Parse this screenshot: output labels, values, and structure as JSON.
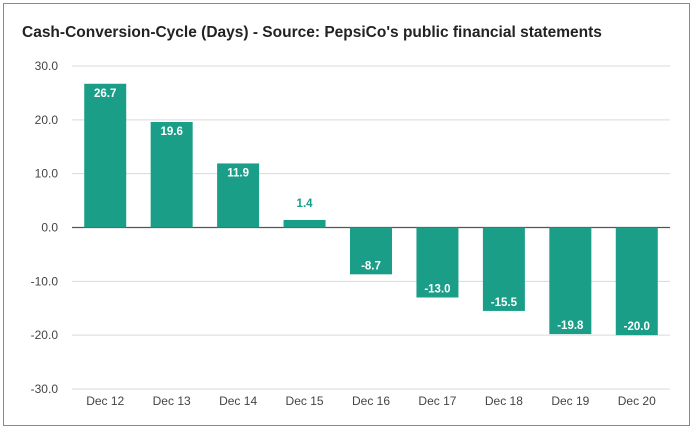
{
  "chart_data": {
    "type": "bar",
    "title": "Cash-Conversion-Cycle (Days) - Source: PepsiCo's public financial statements",
    "xlabel": "",
    "ylabel": "",
    "categories": [
      "Dec 12",
      "Dec 13",
      "Dec 14",
      "Dec 15",
      "Dec 16",
      "Dec 17",
      "Dec 18",
      "Dec 19",
      "Dec 20"
    ],
    "values": [
      26.7,
      19.6,
      11.9,
      1.4,
      -8.7,
      -13.0,
      -15.5,
      -19.8,
      -20.0
    ],
    "value_labels": [
      "26.7",
      "19.6",
      "11.9",
      "1.4",
      "-8.7",
      "-13.0",
      "-15.5",
      "-19.8",
      "-20.0"
    ],
    "ylim": [
      -30,
      30
    ],
    "y_ticks": [
      30,
      20,
      10,
      0,
      -10,
      -20,
      -30
    ],
    "y_tick_labels": [
      "30.0",
      "20.0",
      "10.0",
      "0.0",
      "-10.0",
      "-20.0",
      "-30.0"
    ],
    "grid": true,
    "colors": {
      "bar": "#1b9e87",
      "label_inside": "#ffffff",
      "label_outside": "#1b9e87",
      "grid": "#d9d9d9",
      "zero_line": "#555555"
    }
  }
}
